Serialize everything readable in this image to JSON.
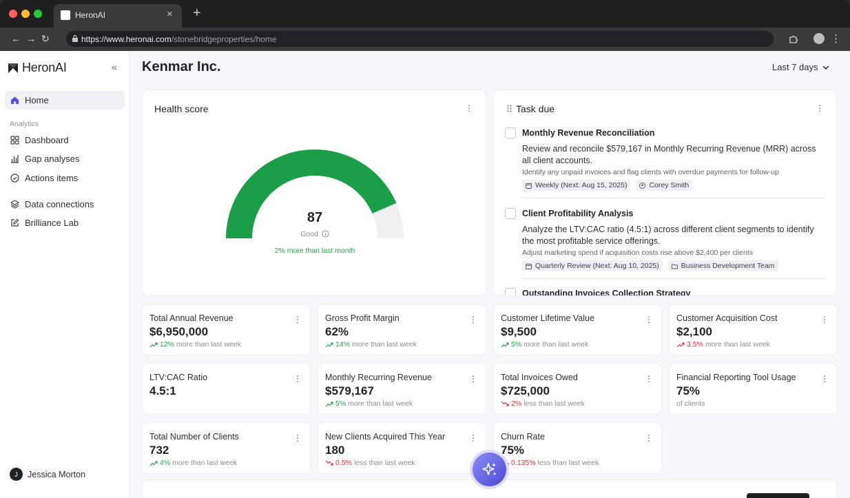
{
  "browser": {
    "tab_title": "HeronAI",
    "url_host": "https://www.heronai.com",
    "url_path": "/stonebridgeproperties/home",
    "new_tab": "+",
    "tab_close": "×"
  },
  "sidebar": {
    "brand": "HeronAI",
    "home": "Home",
    "section": "Analytics",
    "items": [
      {
        "label": "Dashboard",
        "icon": "grid-icon"
      },
      {
        "label": "Gap analyses",
        "icon": "bar-chart-icon"
      },
      {
        "label": "Actions items",
        "icon": "check-circle-icon"
      },
      {
        "label": "Data connections",
        "icon": "layers-icon"
      },
      {
        "label": "Brilliance Lab",
        "icon": "edit-icon"
      }
    ],
    "user": {
      "initial": "J",
      "name": "Jessica Morton"
    }
  },
  "header": {
    "title": "Kenmar Inc.",
    "range": "Last 7 days"
  },
  "health": {
    "title": "Health score",
    "score": "87",
    "fraction": 0.87,
    "label": "Good",
    "delta": "2% more than last month",
    "colors": {
      "fill": "#1a9e47",
      "track": "#f0f0f3"
    }
  },
  "tasks": {
    "title": "Task due",
    "items": [
      {
        "name": "Monthly Revenue Reconciliation",
        "desc": "Review and reconcile $579,167 in Monthly Recurring Revenue (MRR) across all client accounts.",
        "note": "Identify any unpaid invoices and flag clients with overdue payments for follow-up",
        "tag1": "Weekly (Next: Aug 15, 2025)",
        "tag2": "Corey Smith"
      },
      {
        "name": "Client Profitability Analysis",
        "desc": "Analyze the LTV:CAC ratio (4.5:1) across different client segments to identify the most profitable service offerings.",
        "note": "Adjust marketing spend if acquisition costs rise above $2,400 per clients",
        "tag1": "Quarterly Review (Next: Aug 10, 2025)",
        "tag2": "Business Development Team"
      },
      {
        "name": "Outstanding Invoices Collection Strategy"
      }
    ]
  },
  "metrics": [
    {
      "label": "Total Annual Revenue",
      "value": "$6,950,000",
      "pct": "12%",
      "rest": "more than last week",
      "dir": "up"
    },
    {
      "label": "Gross Profit Margin",
      "value": "62%",
      "pct": "14%",
      "rest": "more than last week",
      "dir": "up"
    },
    {
      "label": "Customer Lifetime Value",
      "value": "$9,500",
      "pct": "5%",
      "rest": "more than last week",
      "dir": "up"
    },
    {
      "label": "Customer Acquisition Cost",
      "value": "$2,100",
      "pct": "3.5%",
      "rest": "more than last week",
      "dir": "up-bad"
    },
    {
      "label": "LTV:CAC Ratio",
      "value": "4.5:1",
      "pct": "",
      "rest": "",
      "dir": "none"
    },
    {
      "label": "Monthly Recurring Revenue",
      "value": "$579,167",
      "pct": "5%",
      "rest": "more than last week",
      "dir": "up"
    },
    {
      "label": "Total Invoices Owed",
      "value": "$725,000",
      "pct": "2%",
      "rest": "less than last week",
      "dir": "down-bad"
    },
    {
      "label": "Financial Reporting Tool Usage",
      "value": "75%",
      "pct": "",
      "rest": "of clients",
      "dir": "none"
    },
    {
      "label": "Total Number of Clients",
      "value": "732",
      "pct": "4%",
      "rest": "more than last week",
      "dir": "up"
    },
    {
      "label": "New Clients Acquired This Year",
      "value": "180",
      "pct": "0.5%",
      "rest": "less than last week",
      "dir": "down-bad"
    },
    {
      "label": "Churn Rate",
      "value": "75%",
      "pct": "0.135%",
      "rest": "less than last week",
      "dir": "down-bad"
    }
  ],
  "fab": {
    "icon": "sparkles-icon"
  }
}
